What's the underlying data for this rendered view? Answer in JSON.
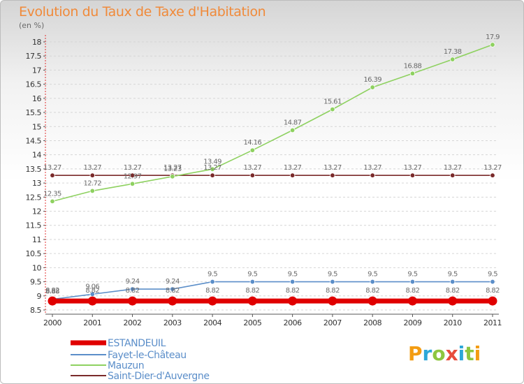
{
  "title": "Evolution du Taux de Taxe d'Habitation",
  "unit": "(en %)",
  "logo": {
    "letters": [
      "P",
      "r",
      "o",
      "x",
      "i",
      "t",
      "i"
    ]
  },
  "colors": {
    "logo": [
      "#f39c12",
      "#2ca7d8",
      "#8dc63f",
      "#e74c3c",
      "#2ca7d8",
      "#8dc63f",
      "#f39c12"
    ]
  },
  "chart_data": {
    "type": "line",
    "title": "Evolution du Taux de Taxe d'Habitation",
    "ylabel": "(en %)",
    "x": [
      "2000",
      "2001",
      "2002",
      "2003",
      "2004",
      "2005",
      "2006",
      "2007",
      "2008",
      "2009",
      "2010",
      "2011"
    ],
    "ylim": [
      8.5,
      18
    ],
    "yticks": [
      "8.5",
      "9",
      "9.5",
      "10",
      "10.5",
      "11",
      "11.5",
      "12",
      "12.5",
      "13",
      "13.5",
      "14",
      "14.5",
      "15",
      "15.5",
      "16",
      "16.5",
      "17",
      "17.5",
      "18"
    ],
    "grid": "horizontal dashed",
    "legend_position": "bottom-left",
    "series": [
      {
        "name": "ESTANDEUIL",
        "color": "#e00000",
        "values": [
          8.82,
          8.82,
          8.82,
          8.82,
          8.82,
          8.82,
          8.82,
          8.82,
          8.82,
          8.82,
          8.82,
          8.82
        ],
        "labels": [
          "8.82",
          "8.82",
          "8.82",
          "8.82",
          "8.82",
          "8.82",
          "8.82",
          "8.82",
          "8.82",
          "8.82",
          "8.82",
          "8.82"
        ]
      },
      {
        "name": "Fayet-le-Château",
        "color": "#5b8ec9",
        "values": [
          8.88,
          9.06,
          9.24,
          9.24,
          9.5,
          9.5,
          9.5,
          9.5,
          9.5,
          9.5,
          9.5,
          9.5
        ],
        "labels": [
          "8.88",
          "9.06",
          "9.24",
          "9.24",
          "9.5",
          "9.5",
          "9.5",
          "9.5",
          "9.5",
          "9.5",
          "9.5",
          "9.5"
        ]
      },
      {
        "name": "Mauzun",
        "color": "#8ed160",
        "values": [
          12.35,
          12.72,
          12.97,
          13.23,
          13.49,
          14.16,
          14.87,
          15.61,
          16.39,
          16.88,
          17.38,
          17.9
        ],
        "labels": [
          "12.35",
          "12.72",
          "12.97",
          "13.23",
          "13.49",
          "14.16",
          "14.87",
          "15.61",
          "16.39",
          "16.88",
          "17.38",
          "17.9"
        ]
      },
      {
        "name": "Saint-Dier-d'Auvergne",
        "color": "#7a2a2a",
        "values": [
          13.27,
          13.27,
          13.27,
          13.27,
          13.27,
          13.27,
          13.27,
          13.27,
          13.27,
          13.27,
          13.27,
          13.27
        ],
        "labels": [
          "13.27",
          "13.27",
          "13.27",
          "13.27",
          "13.27",
          "13.27",
          "13.27",
          "13.27",
          "13.27",
          "13.27",
          "13.27",
          "13.27"
        ]
      }
    ]
  }
}
